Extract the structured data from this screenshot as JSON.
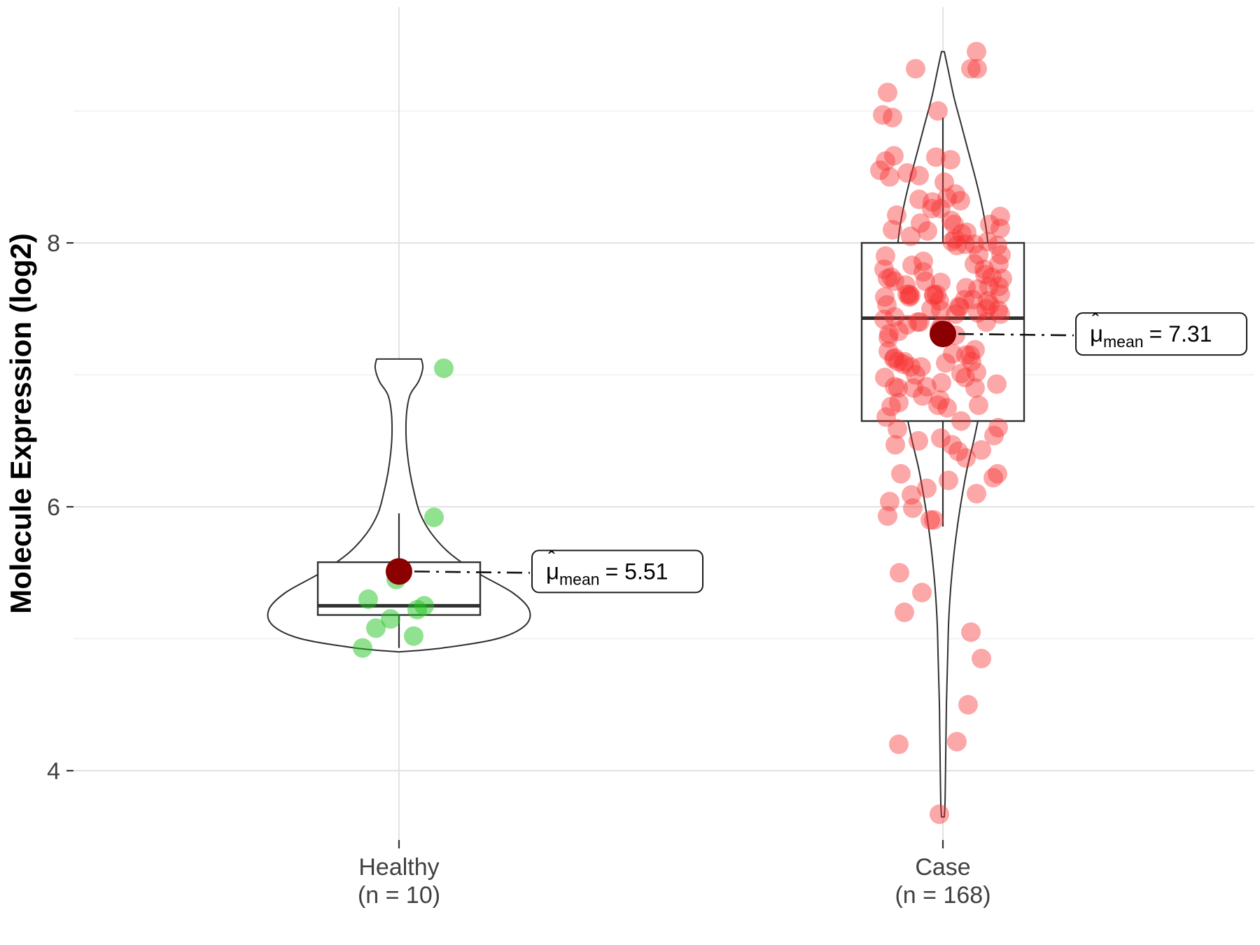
{
  "chart_data": {
    "type": "violin",
    "subtype": "violin+boxplot+jitter+mean-annotation",
    "title": "",
    "xlabel": "",
    "ylabel": "Molecule Expression (log2)",
    "y_axis": {
      "major_ticks": [
        4,
        6,
        8
      ],
      "minor_ticks": [
        5,
        7,
        9
      ],
      "range": [
        3.4,
        9.6
      ]
    },
    "grid": true,
    "legend": "none",
    "colors": {
      "background": "#ffffff",
      "grid_major": "#e3e3e3",
      "grid_minor": "#f0f0f0",
      "outline": "#2f2f2f",
      "tick_label": "#404040",
      "axis_title": "#000000",
      "healthy_points": "#22c522",
      "case_points": "#f83030",
      "mean_dot": "#8b0000",
      "annotation_border": "#1a1a1a",
      "annotation_fill": "#ffffff",
      "connector": "#111111"
    },
    "groups": [
      {
        "id": "healthy",
        "tick_label_line1": "Healthy",
        "tick_label_line2": "(n = 10)",
        "n": 10,
        "mean": 5.51,
        "point_opacity": 0.5,
        "box": {
          "q1": 5.18,
          "median": 5.25,
          "q3": 5.58,
          "whisker_low": 4.93,
          "whisker_high": 5.95
        },
        "violin_profile": [
          [
            7.12,
            32
          ],
          [
            7.05,
            34
          ],
          [
            6.95,
            28
          ],
          [
            6.85,
            16
          ],
          [
            6.72,
            11
          ],
          [
            6.55,
            10
          ],
          [
            6.4,
            12
          ],
          [
            6.25,
            16
          ],
          [
            6.1,
            22
          ],
          [
            5.95,
            30
          ],
          [
            5.8,
            46
          ],
          [
            5.65,
            72
          ],
          [
            5.5,
            112
          ],
          [
            5.35,
            162
          ],
          [
            5.22,
            186
          ],
          [
            5.1,
            180
          ],
          [
            5.0,
            140
          ],
          [
            4.93,
            62
          ],
          [
            4.9,
            0
          ]
        ],
        "points": [
          [
            7.05,
            64
          ],
          [
            5.92,
            50
          ],
          [
            5.45,
            -4
          ],
          [
            5.3,
            -44
          ],
          [
            5.25,
            36
          ],
          [
            5.22,
            26
          ],
          [
            5.15,
            -12
          ],
          [
            5.08,
            -33
          ],
          [
            5.02,
            21
          ],
          [
            4.93,
            -52
          ]
        ]
      },
      {
        "id": "case",
        "tick_label_line1": "Case",
        "tick_label_line2": "(n = 168)",
        "n": 168,
        "mean": 7.31,
        "point_opacity": 0.42,
        "box": {
          "q1": 6.65,
          "median": 7.43,
          "q3": 8.0,
          "whisker_low": 5.85,
          "whisker_high": 8.95
        },
        "violin_profile": [
          [
            9.45,
            2
          ],
          [
            9.3,
            8
          ],
          [
            9.1,
            16
          ],
          [
            8.9,
            26
          ],
          [
            8.7,
            36
          ],
          [
            8.5,
            46
          ],
          [
            8.3,
            55
          ],
          [
            8.1,
            62
          ],
          [
            7.9,
            66
          ],
          [
            7.7,
            69
          ],
          [
            7.5,
            70
          ],
          [
            7.3,
            69
          ],
          [
            7.1,
            66
          ],
          [
            6.9,
            60
          ],
          [
            6.7,
            52
          ],
          [
            6.5,
            44
          ],
          [
            6.3,
            35
          ],
          [
            6.1,
            28
          ],
          [
            5.9,
            22
          ],
          [
            5.7,
            17
          ],
          [
            5.5,
            13
          ],
          [
            5.3,
            10
          ],
          [
            5.1,
            8
          ],
          [
            4.9,
            7
          ],
          [
            4.7,
            6
          ],
          [
            4.5,
            5
          ],
          [
            4.3,
            4.5
          ],
          [
            4.1,
            4
          ],
          [
            3.9,
            3.5
          ],
          [
            3.75,
            3
          ],
          [
            3.65,
            2
          ]
        ],
        "points_explicit": [
          [
            9.45,
            48
          ],
          [
            8.66,
            -70
          ],
          [
            8.62,
            -82
          ],
          [
            8.55,
            -90
          ],
          [
            8.5,
            -76
          ],
          [
            5.5,
            -62
          ],
          [
            5.35,
            -30
          ],
          [
            5.2,
            -55
          ],
          [
            5.05,
            40
          ],
          [
            4.85,
            55
          ],
          [
            4.5,
            36
          ],
          [
            4.22,
            20
          ],
          [
            4.2,
            -63
          ],
          [
            3.67,
            -5
          ]
        ],
        "points_model": {
          "count": 154,
          "mean": 7.38,
          "sd": 0.78,
          "min": 5.9,
          "max": 9.32,
          "jitter_halfwidth": 86,
          "seed": 11
        }
      }
    ],
    "annotations": [
      {
        "group": "healthy",
        "mu": "μ",
        "hat": "ˆ",
        "sub": "mean",
        "value_text": "= 5.51"
      },
      {
        "group": "case",
        "mu": "μ",
        "hat": "ˆ",
        "sub": "mean",
        "value_text": "= 7.31"
      }
    ]
  }
}
